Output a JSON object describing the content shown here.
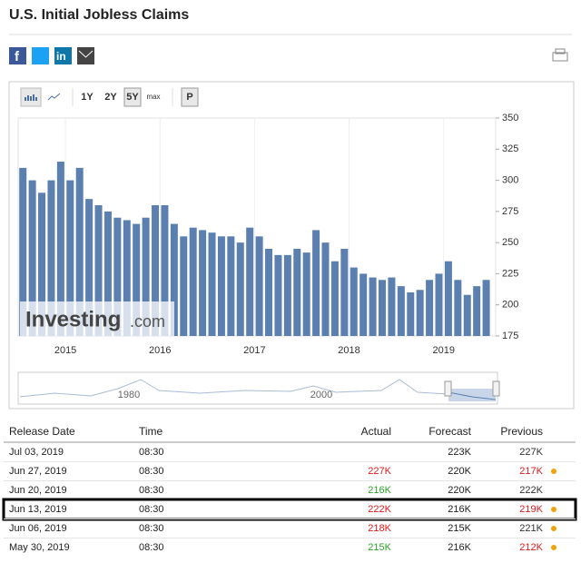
{
  "header": {
    "title": "U.S. Initial Jobless Claims"
  },
  "toolbar": {
    "ranges": [
      "1Y",
      "2Y",
      "5Y",
      "max"
    ],
    "active": 2,
    "extra": "P"
  },
  "chart_data": {
    "type": "bar",
    "color": "#5b80b0",
    "x": [
      2014.55,
      2014.65,
      2014.75,
      2014.85,
      2014.95,
      2015.05,
      2015.15,
      2015.25,
      2015.35,
      2015.45,
      2015.55,
      2015.65,
      2015.75,
      2015.85,
      2015.95,
      2016.05,
      2016.15,
      2016.25,
      2016.35,
      2016.45,
      2016.55,
      2016.65,
      2016.75,
      2016.85,
      2016.95,
      2017.05,
      2017.15,
      2017.25,
      2017.35,
      2017.45,
      2017.55,
      2017.65,
      2017.75,
      2017.85,
      2017.95,
      2018.05,
      2018.15,
      2018.25,
      2018.35,
      2018.45,
      2018.55,
      2018.65,
      2018.75,
      2018.85,
      2018.95,
      2019.05,
      2019.15,
      2019.25,
      2019.35,
      2019.45
    ],
    "values": [
      310,
      300,
      290,
      300,
      315,
      300,
      310,
      285,
      280,
      275,
      270,
      268,
      265,
      270,
      280,
      280,
      265,
      255,
      262,
      260,
      258,
      255,
      255,
      250,
      262,
      255,
      245,
      240,
      240,
      245,
      242,
      260,
      250,
      235,
      245,
      230,
      225,
      222,
      220,
      222,
      215,
      210,
      212,
      220,
      225,
      235,
      220,
      208,
      215,
      220
    ],
    "xlim": [
      2014.5,
      2019.55
    ],
    "xticks": [
      2015,
      2016,
      2017,
      2018,
      2019
    ],
    "ylim": [
      175,
      350
    ],
    "yticks": [
      175,
      200,
      225,
      250,
      275,
      300,
      325,
      350
    ],
    "grid": true,
    "watermark": [
      "Investing",
      ".com"
    ],
    "navigator_labels": [
      "1980",
      "2000"
    ]
  },
  "table": {
    "columns": [
      "Release Date",
      "Time",
      "Actual",
      "Forecast",
      "Previous"
    ],
    "highlight_row": 3,
    "rows": [
      {
        "date": "Jul 03, 2019",
        "time": "08:30",
        "actual": null,
        "actual_color": null,
        "forecast": "223K",
        "previous": "227K",
        "previous_color": "#333333",
        "dot": false
      },
      {
        "date": "Jun 27, 2019",
        "time": "08:30",
        "actual": "227K",
        "actual_color": "#e0191b",
        "forecast": "220K",
        "previous": "217K",
        "previous_color": "#e0191b",
        "dot": true
      },
      {
        "date": "Jun 20, 2019",
        "time": "08:30",
        "actual": "216K",
        "actual_color": "#2aa52a",
        "forecast": "220K",
        "previous": "222K",
        "previous_color": "#333333",
        "dot": false
      },
      {
        "date": "Jun 13, 2019",
        "time": "08:30",
        "actual": "222K",
        "actual_color": "#e0191b",
        "forecast": "216K",
        "previous": "219K",
        "previous_color": "#e0191b",
        "dot": true
      },
      {
        "date": "Jun 06, 2019",
        "time": "08:30",
        "actual": "218K",
        "actual_color": "#e0191b",
        "forecast": "215K",
        "previous": "221K",
        "previous_color": "#333333",
        "dot": true
      },
      {
        "date": "May 30, 2019",
        "time": "08:30",
        "actual": "215K",
        "actual_color": "#2aa52a",
        "forecast": "216K",
        "previous": "212K",
        "previous_color": "#e0191b",
        "dot": true
      }
    ]
  }
}
